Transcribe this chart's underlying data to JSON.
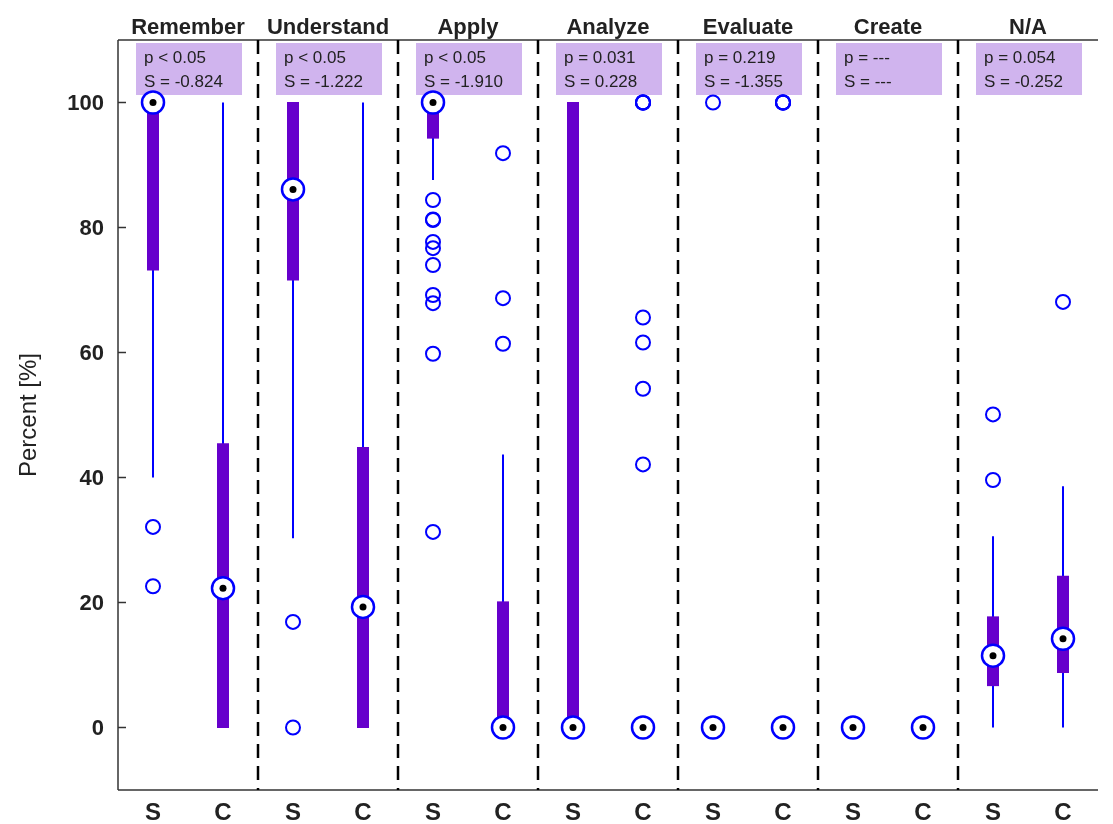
{
  "chart_data": [
    {
      "type": "box",
      "title": "Remember",
      "ylabel": "Percent [%]",
      "categories": [
        "S",
        "C"
      ],
      "ylim": [
        -10,
        110
      ],
      "yticks": [
        0,
        20,
        40,
        60,
        80,
        100
      ],
      "annotations": [
        "p < 0.05",
        "S = -0.824"
      ],
      "series": [
        {
          "color": "#6600cc",
          "boxes": [
            {
              "low": 40,
              "q1": 73.2,
              "median": 100,
              "q3": 100,
              "high": 100,
              "outliers": [
                32.1,
                22.6
              ]
            },
            {
              "low": 0,
              "q1": 0,
              "median": 22.3,
              "q3": 45.4,
              "high": 100
            }
          ]
        }
      ]
    },
    {
      "type": "box",
      "title": "Understand",
      "categories": [
        "S",
        "C"
      ],
      "ylim": [
        -10,
        110
      ],
      "tick_labels": "x",
      "annotations": [
        "p < 0.05",
        "S = -1.222"
      ],
      "series": [
        {
          "color": "#6600cc",
          "boxes": [
            {
              "low": 30.3,
              "q1": 71.6,
              "median": 86.1,
              "q3": 100,
              "high": 100,
              "outliers": [
                16.9,
                0
              ]
            },
            {
              "low": 0,
              "q1": 0,
              "median": 19.3,
              "q3": 44.8,
              "high": 100
            }
          ]
        }
      ]
    },
    {
      "type": "box",
      "title": "Apply",
      "categories": [
        "S",
        "C"
      ],
      "ylim": [
        -10,
        110
      ],
      "tick_labels": "x",
      "annotations": [
        "p < 0.05",
        "S = -1.910"
      ],
      "series": [
        {
          "color": "#6600cc",
          "boxes": [
            {
              "low": 87.6,
              "q1": 94.3,
              "median": 100,
              "q3": 100,
              "high": 100,
              "outliers": [
                84.4,
                81.3,
                81.2,
                77.7,
                76.7,
                74,
                69.2,
                67.9,
                59.8,
                31.3
              ]
            },
            {
              "low": 0,
              "q1": 0,
              "median": 0,
              "q3": 20.1,
              "high": 43.7,
              "outliers": [
                91.9,
                68.7,
                61.4
              ]
            }
          ]
        }
      ]
    },
    {
      "type": "box",
      "title": "Analyze",
      "categories": [
        "S",
        "C"
      ],
      "ylim": [
        -10,
        110
      ],
      "tick_labels": "x",
      "annotations": [
        "p = 0.031",
        "S = 0.228"
      ],
      "series": [
        {
          "color": "#6600cc",
          "boxes": [
            {
              "low": 0,
              "q1": 0,
              "median": 0,
              "q3": 100,
              "high": 100
            },
            {
              "low": 0,
              "q1": 0,
              "median": 0,
              "q3": 0,
              "high": 0,
              "outliers": [
                100,
                100,
                100,
                100,
                65.6,
                61.6,
                54.2,
                42.1
              ]
            }
          ]
        }
      ]
    },
    {
      "type": "box",
      "title": "Evaluate",
      "categories": [
        "S",
        "C"
      ],
      "ylim": [
        -10,
        110
      ],
      "tick_labels": "x",
      "annotations": [
        "p = 0.219",
        "S = -1.355"
      ],
      "series": [
        {
          "color": "#6600cc",
          "boxes": [
            {
              "low": 0,
              "q1": 0,
              "median": 0,
              "q3": 0,
              "high": 0,
              "outliers": [
                100
              ]
            },
            {
              "low": 0,
              "q1": 0,
              "median": 0,
              "q3": 0,
              "high": 0,
              "outliers": [
                100,
                100,
                100,
                100
              ]
            }
          ]
        }
      ]
    },
    {
      "type": "box",
      "title": "Create",
      "categories": [
        "S",
        "C"
      ],
      "ylim": [
        -10,
        110
      ],
      "tick_labels": "x",
      "annotations": [
        "p = ---",
        "S = ---"
      ],
      "series": [
        {
          "color": "#6600cc",
          "boxes": [
            {
              "low": 0,
              "q1": 0,
              "median": 0,
              "q3": 0,
              "high": 0
            },
            {
              "low": 0,
              "q1": 0,
              "median": 0,
              "q3": 0,
              "high": 0
            }
          ]
        }
      ]
    },
    {
      "type": "box",
      "title": "N/A",
      "categories": [
        "S",
        "C"
      ],
      "ylim": [
        -10,
        110
      ],
      "tick_labels": "x",
      "annotations": [
        "p = 0.054",
        "S = -0.252"
      ],
      "series": [
        {
          "color": "#6600cc",
          "boxes": [
            {
              "low": 0,
              "q1": 6.7,
              "median": 11.5,
              "q3": 17.7,
              "high": 30.6,
              "outliers": [
                50.1,
                39.6
              ]
            },
            {
              "low": 0,
              "q1": 8.8,
              "median": 14.2,
              "q3": 24.2,
              "high": 38.6,
              "outliers": [
                68.1
              ]
            }
          ]
        }
      ]
    }
  ]
}
